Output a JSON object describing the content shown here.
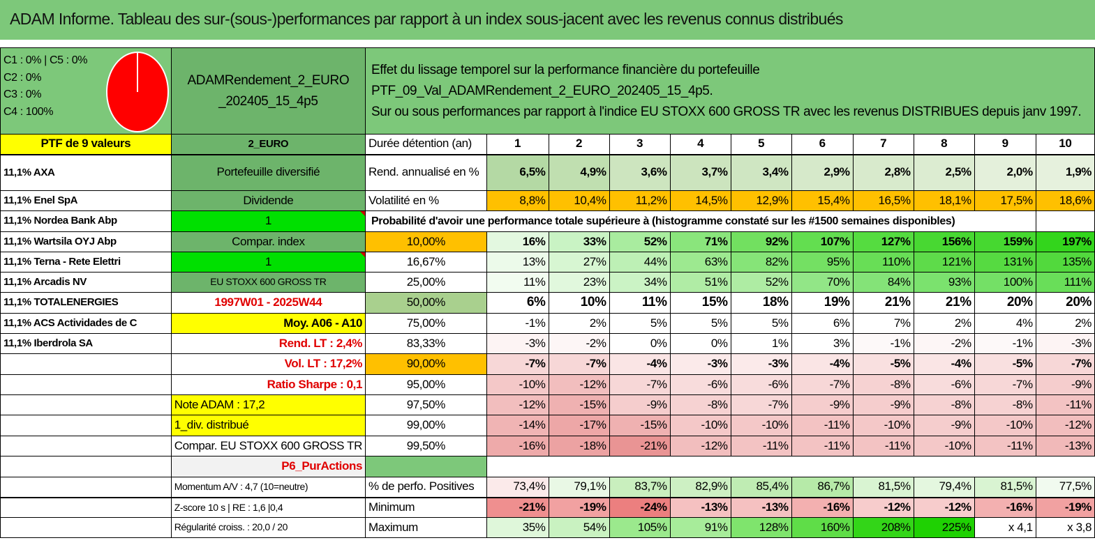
{
  "title": "ADAM Informe. Tableau des sur-(sous-)performances par rapport à un index sous-jacent avec les revenus connus distribués",
  "legend": {
    "lines": [
      "C1 : 0% | C5 : 0%",
      "C2 : 0%",
      "C3 : 0%",
      "C4 : 100%"
    ],
    "pie_color": "#ff0000"
  },
  "fund": {
    "name": "ADAMRendement_2_EURO _202405_15_4p5",
    "currency": "2_EURO",
    "type": "Portefeuille diversifié",
    "style": "Dividende",
    "flag1": "1",
    "compar_label": "Compar. index",
    "flag2": "1",
    "index_name": "EU STOXX 600 GROSS TR",
    "period": "1997W01 - 2025W44",
    "moy": "Moy. A06 - A10",
    "rend_lt": "Rend. LT : 2,4%",
    "vol_lt": "Vol. LT : 17,2%",
    "sharpe": "Ratio Sharpe : 0,1",
    "note": "Note ADAM : 17,2",
    "div": "1_div. distribué",
    "compar_full": "Compar. EU STOXX 600 GROSS TR",
    "category": "P6_PurActions",
    "momentum": "Momentum A/V : 4,7 (10=neutre)",
    "zscore": "Z-score 10 s | RE : 1,6 |0,4",
    "regularity": "Régularité croiss. : 20,0 / 20"
  },
  "description": {
    "line1": "Effet du lissage temporel sur la performance financière du portefeuille PTF_09_Val_ADAMRendement_2_EURO_202405_15_4p5.",
    "line2": "Sur ou sous performances par rapport à l'indice EU STOXX 600 GROSS TR avec les revenus DISTRIBUES depuis janv 1997."
  },
  "portfolio": {
    "header": "PTF de 9 valeurs",
    "holdings": [
      "11,1% AXA",
      "11,1% Enel SpA",
      "11,1% Nordea Bank Abp",
      "11,1% Wartsila OYJ Abp",
      "11,1% Terna - Rete Elettri",
      "11,1% Arcadis NV",
      "11,1% TOTALENERGIES",
      "11,1% ACS Actividades de C",
      "11,1% Iberdrola SA"
    ]
  },
  "table": {
    "duration_label": "Durée détention (an)",
    "years": [
      "1",
      "2",
      "3",
      "4",
      "5",
      "6",
      "7",
      "8",
      "9",
      "10"
    ],
    "rend_label": "Rend. annualisé en %",
    "rend": [
      "6,5%",
      "4,9%",
      "3,6%",
      "3,7%",
      "3,4%",
      "2,9%",
      "2,8%",
      "2,5%",
      "2,0%",
      "1,9%"
    ],
    "vol_label": "Volatilité en %",
    "vol": [
      "8,8%",
      "10,4%",
      "11,2%",
      "14,5%",
      "12,9%",
      "15,4%",
      "16,5%",
      "18,1%",
      "17,5%",
      "18,6%"
    ],
    "prob_title": "Probabilité d'avoir une performance totale supérieure à (histogramme constaté sur les #1500 semaines disponibles)",
    "quantiles": [
      {
        "p": "10,00%",
        "v": [
          "16%",
          "33%",
          "52%",
          "71%",
          "92%",
          "107%",
          "127%",
          "156%",
          "159%",
          "197%"
        ]
      },
      {
        "p": "16,67%",
        "v": [
          "13%",
          "27%",
          "44%",
          "63%",
          "82%",
          "95%",
          "110%",
          "121%",
          "131%",
          "135%"
        ]
      },
      {
        "p": "25,00%",
        "v": [
          "11%",
          "23%",
          "34%",
          "51%",
          "52%",
          "70%",
          "84%",
          "93%",
          "100%",
          "111%"
        ]
      },
      {
        "p": "50,00%",
        "v": [
          "6%",
          "10%",
          "11%",
          "15%",
          "18%",
          "19%",
          "21%",
          "21%",
          "20%",
          "20%"
        ]
      },
      {
        "p": "75,00%",
        "v": [
          "-1%",
          "2%",
          "5%",
          "5%",
          "5%",
          "6%",
          "7%",
          "2%",
          "4%",
          "2%"
        ]
      },
      {
        "p": "83,33%",
        "v": [
          "-3%",
          "-2%",
          "0%",
          "0%",
          "1%",
          "3%",
          "-1%",
          "-2%",
          "-1%",
          "-3%"
        ]
      },
      {
        "p": "90,00%",
        "v": [
          "-7%",
          "-7%",
          "-4%",
          "-3%",
          "-3%",
          "-4%",
          "-5%",
          "-4%",
          "-5%",
          "-7%"
        ]
      },
      {
        "p": "95,00%",
        "v": [
          "-10%",
          "-12%",
          "-7%",
          "-6%",
          "-6%",
          "-7%",
          "-8%",
          "-6%",
          "-7%",
          "-9%"
        ]
      },
      {
        "p": "97,50%",
        "v": [
          "-12%",
          "-15%",
          "-9%",
          "-8%",
          "-7%",
          "-9%",
          "-9%",
          "-8%",
          "-8%",
          "-11%"
        ]
      },
      {
        "p": "99,00%",
        "v": [
          "-14%",
          "-17%",
          "-15%",
          "-10%",
          "-10%",
          "-11%",
          "-10%",
          "-9%",
          "-10%",
          "-12%"
        ]
      },
      {
        "p": "99,50%",
        "v": [
          "-16%",
          "-18%",
          "-21%",
          "-12%",
          "-11%",
          "-11%",
          "-11%",
          "-10%",
          "-11%",
          "-13%"
        ]
      }
    ],
    "pos_label": "% de perfo. Positives",
    "pos": [
      "73,4%",
      "79,1%",
      "83,7%",
      "82,9%",
      "85,4%",
      "86,7%",
      "81,5%",
      "79,4%",
      "81,5%",
      "77,5%"
    ],
    "min_label": "Minimum",
    "min": [
      "-21%",
      "-19%",
      "-24%",
      "-13%",
      "-13%",
      "-16%",
      "-12%",
      "-12%",
      "-16%",
      "-19%"
    ],
    "max_label": "Maximum",
    "max": [
      "35%",
      "54%",
      "105%",
      "91%",
      "128%",
      "160%",
      "208%",
      "225%",
      "x 4,1",
      "x 3,8"
    ]
  },
  "colors": {
    "rend_row": [
      "#b4d9a4",
      "#c0dfb0",
      "#cde5bf",
      "#cce4be",
      "#cfe6c2",
      "#d6e9ca",
      "#d8eacc",
      "#dcecd1",
      "#e4f0db",
      "#e6f1dd"
    ],
    "vol_row": [
      "#ffc000",
      "#ffc000",
      "#ffc000",
      "#ffc000",
      "#ffc000",
      "#ffc000",
      "#ffc000",
      "#ffc000",
      "#ffc000",
      "#ffc000"
    ],
    "quantile_rows": [
      [
        "#e3f8e0",
        "#c9f3c4",
        "#a9ec9f",
        "#8ae57c",
        "#72e060",
        "#63de50",
        "#55dc40",
        "#48d832",
        "#46d830",
        "#33d51c"
      ],
      [
        "#ecfaea",
        "#d7f6d2",
        "#bdf0b5",
        "#9de990",
        "#86e478",
        "#74e063",
        "#68de56",
        "#5edb4a",
        "#56da41",
        "#52d93d"
      ],
      [
        "#f2fcf0",
        "#e1f8dd",
        "#cbf3c5",
        "#b0ec a5",
        "#aeeca3",
        "#92e687",
        "#84e378",
        "#7be26e",
        "#74e066",
        "#69de59"
      ],
      [
        "#ffffff",
        "#ffffff",
        "#ffffff",
        "#ffffff",
        "#ffffff",
        "#ffffff",
        "#ffffff",
        "#ffffff",
        "#ffffff",
        "#ffffff"
      ],
      [
        "#ffffff",
        "#ffffff",
        "#ffffff",
        "#ffffff",
        "#ffffff",
        "#ffffff",
        "#ffffff",
        "#ffffff",
        "#ffffff",
        "#ffffff"
      ],
      [
        "#fdf4f4",
        "#fdf6f6",
        "#ffffff",
        "#ffffff",
        "#ffffff",
        "#ffffff",
        "#fdf9f9",
        "#fdf6f6",
        "#fdf9f9",
        "#fdf4f4"
      ],
      [
        "#f7d7d7",
        "#f7d7d7",
        "#fae5e5",
        "#fbeaea",
        "#fbeaea",
        "#fae5e5",
        "#f9e0e0",
        "#fae5e5",
        "#f9e0e0",
        "#f7d7d7"
      ],
      [
        "#f4c8c8",
        "#f2bebe",
        "#f7d7d7",
        "#f8dcdc",
        "#f8dcdc",
        "#f7d7d7",
        "#f6d2d2",
        "#f8dcdc",
        "#f7d7d7",
        "#f5cdcd"
      ],
      [
        "#f2bebe",
        "#efb1b1",
        "#f5cdcd",
        "#f6d2d2",
        "#f7d7d7",
        "#f5cdcd",
        "#f5cdcd",
        "#f6d2d2",
        "#f6d2d2",
        "#f3c3c3"
      ],
      [
        "#f0b4b4",
        "#eda7a7",
        "#efb1b1",
        "#f4c8c8",
        "#f4c8c8",
        "#f3c3c3",
        "#f4c8c8",
        "#f5cdcd",
        "#f4c8c8",
        "#f2bebe"
      ],
      [
        "#eeaaaa",
        "#eca2a2",
        "#e99494",
        "#f2bebe",
        "#f3c3c3",
        "#f3c3c3",
        "#f3c3c3",
        "#f4c8c8",
        "#f3c3c3",
        "#f1b9b9"
      ]
    ],
    "pos_row": [
      "#fbeaea",
      "#e9f8e5",
      "#c9efbe",
      "#cdf0c3",
      "#bfecb3",
      "#b6eaa8",
      "#d9f4d2",
      "#e4f7df",
      "#d9f4d2",
      "#f1faef"
    ],
    "min_row": [
      "#ef8f8f",
      "#f1a1a1",
      "#ec7f7f",
      "#f5c1c1",
      "#f5c1c1",
      "#f3b0b0",
      "#f7cccc",
      "#f7cccc",
      "#f3b0b0",
      "#f1a1a1"
    ],
    "max_row": [
      "#dff7da",
      "#c9f2c1",
      "#9be98d",
      "#a7ec9a",
      "#7fe46d",
      "#5fdd48",
      "#33d518",
      "#1fd103",
      "#ffffff",
      "#ffffff"
    ]
  }
}
